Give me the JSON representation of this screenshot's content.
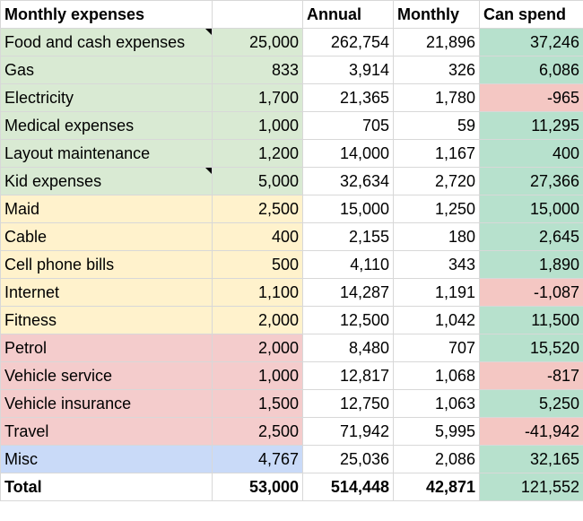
{
  "headers": {
    "title": "Monthly expenses",
    "blank": "",
    "annual": "Annual",
    "monthly": "Monthly",
    "can_spend": "Can spend"
  },
  "rows": [
    {
      "name": "Food and cash expenses",
      "budget": "25,000",
      "annual": "262,754",
      "monthly": "21,896",
      "can_spend": "37,246"
    },
    {
      "name": "Gas",
      "budget": "833",
      "annual": "3,914",
      "monthly": "326",
      "can_spend": "6,086"
    },
    {
      "name": "Electricity",
      "budget": "1,700",
      "annual": "21,365",
      "monthly": "1,780",
      "can_spend": "-965"
    },
    {
      "name": "Medical expenses",
      "budget": "1,000",
      "annual": "705",
      "monthly": "59",
      "can_spend": "11,295"
    },
    {
      "name": "Layout maintenance",
      "budget": "1,200",
      "annual": "14,000",
      "monthly": "1,167",
      "can_spend": "400"
    },
    {
      "name": "Kid expenses",
      "budget": "5,000",
      "annual": "32,634",
      "monthly": "2,720",
      "can_spend": "27,366"
    },
    {
      "name": "Maid",
      "budget": "2,500",
      "annual": "15,000",
      "monthly": "1,250",
      "can_spend": "15,000"
    },
    {
      "name": "Cable",
      "budget": "400",
      "annual": "2,155",
      "monthly": "180",
      "can_spend": "2,645"
    },
    {
      "name": "Cell phone bills",
      "budget": "500",
      "annual": "4,110",
      "monthly": "343",
      "can_spend": "1,890"
    },
    {
      "name": "Internet",
      "budget": "1,100",
      "annual": "14,287",
      "monthly": "1,191",
      "can_spend": "-1,087"
    },
    {
      "name": "Fitness",
      "budget": "2,000",
      "annual": "12,500",
      "monthly": "1,042",
      "can_spend": "11,500"
    },
    {
      "name": "Petrol",
      "budget": "2,000",
      "annual": "8,480",
      "monthly": "707",
      "can_spend": "15,520"
    },
    {
      "name": "Vehicle service",
      "budget": "1,000",
      "annual": "12,817",
      "monthly": "1,068",
      "can_spend": "-817"
    },
    {
      "name": "Vehicle insurance",
      "budget": "1,500",
      "annual": "12,750",
      "monthly": "1,063",
      "can_spend": "5,250"
    },
    {
      "name": "Travel",
      "budget": "2,500",
      "annual": "71,942",
      "monthly": "5,995",
      "can_spend": "-41,942"
    },
    {
      "name": "Misc",
      "budget": "4,767",
      "annual": "25,036",
      "monthly": "2,086",
      "can_spend": "32,165"
    }
  ],
  "total": {
    "name": "Total",
    "budget": "53,000",
    "annual": "514,448",
    "monthly": "42,871",
    "can_spend": "121,552"
  },
  "colors": {
    "group_green": "#d9ead3",
    "group_yellow": "#fff2cc",
    "group_red": "#f4cccc",
    "group_blue": "#c9daf8",
    "positive": "#b7e1cd",
    "negative": "#f4c7c3"
  }
}
